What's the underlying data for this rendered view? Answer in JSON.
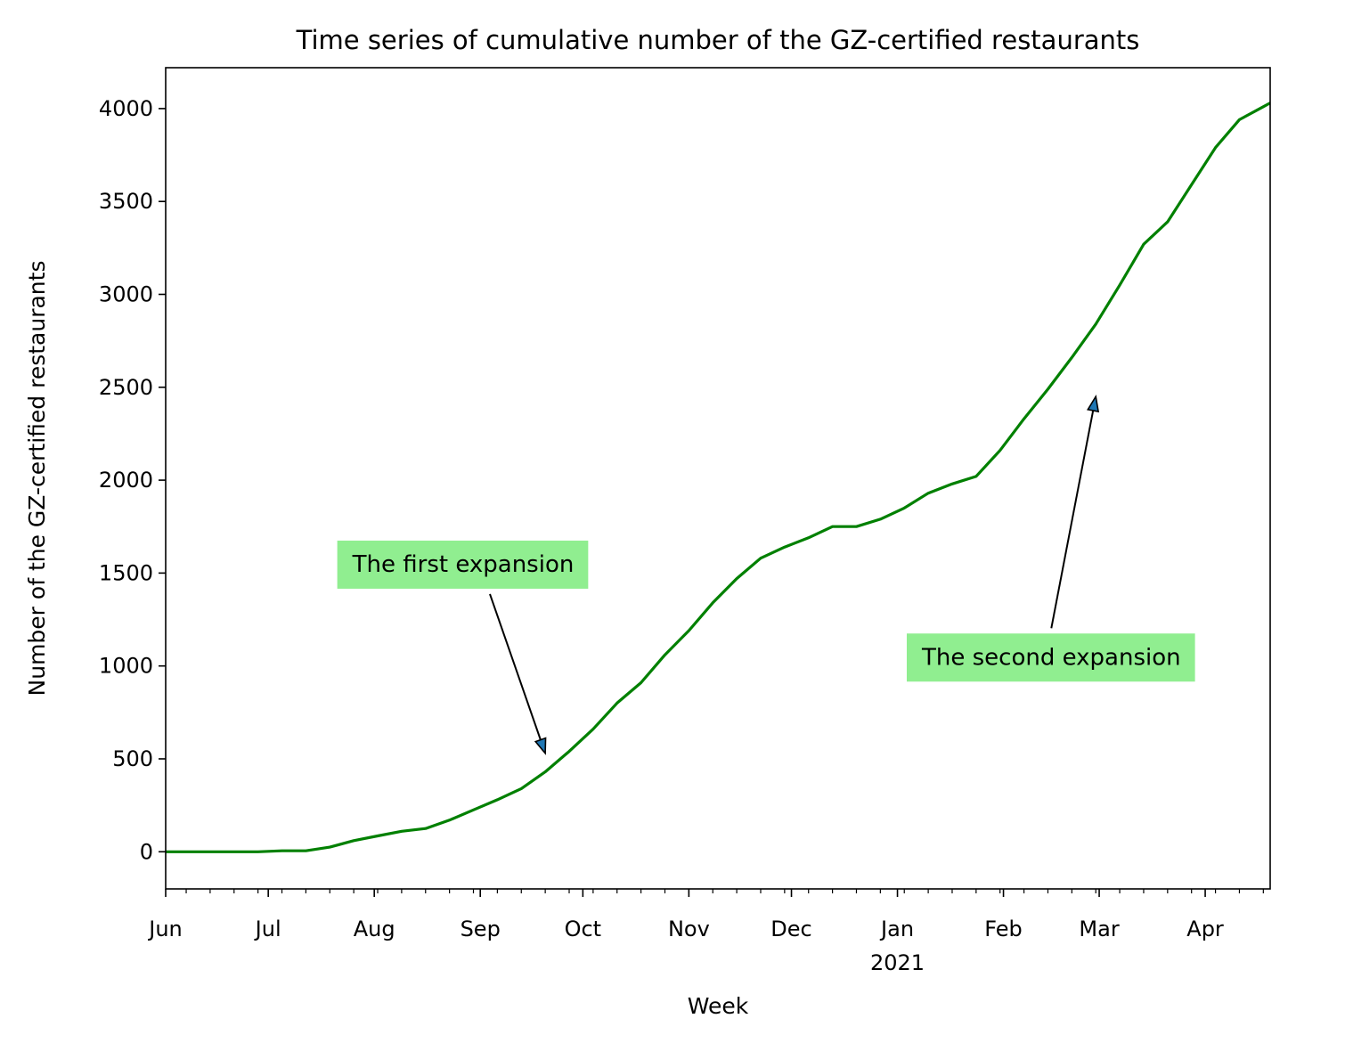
{
  "chart_data": {
    "type": "line",
    "title": "Time series of cumulative number of the GZ-certified restaurants",
    "xlabel": "Week",
    "ylabel": "Number of the GZ-certified restaurants",
    "ylim": [
      -200,
      4220
    ],
    "xlim": [
      "2020-06-01",
      "2021-04-20"
    ],
    "grid": false,
    "line_color": "#008000",
    "y_ticks": [
      0,
      500,
      1000,
      1500,
      2000,
      2500,
      3000,
      3500,
      4000
    ],
    "x_ticks": [
      {
        "date": "2020-06-01",
        "label": "Jun"
      },
      {
        "date": "2020-07-01",
        "label": "Jul"
      },
      {
        "date": "2020-08-01",
        "label": "Aug"
      },
      {
        "date": "2020-09-01",
        "label": "Sep"
      },
      {
        "date": "2020-10-01",
        "label": "Oct"
      },
      {
        "date": "2020-11-01",
        "label": "Nov"
      },
      {
        "date": "2020-12-01",
        "label": "Dec"
      },
      {
        "date": "2021-01-01",
        "label": "Jan",
        "sublabel": "2021"
      },
      {
        "date": "2021-02-01",
        "label": "Feb"
      },
      {
        "date": "2021-03-01",
        "label": "Mar"
      },
      {
        "date": "2021-04-01",
        "label": "Apr"
      }
    ],
    "series": [
      {
        "x": [
          "2020-06-01",
          "2020-06-07",
          "2020-06-14",
          "2020-06-21",
          "2020-06-28",
          "2020-07-05",
          "2020-07-12",
          "2020-07-19",
          "2020-07-26",
          "2020-08-02",
          "2020-08-09",
          "2020-08-16",
          "2020-08-23",
          "2020-08-30",
          "2020-09-06",
          "2020-09-13",
          "2020-09-20",
          "2020-09-27",
          "2020-10-04",
          "2020-10-11",
          "2020-10-18",
          "2020-10-25",
          "2020-11-01",
          "2020-11-08",
          "2020-11-15",
          "2020-11-22",
          "2020-11-29",
          "2020-12-06",
          "2020-12-13",
          "2020-12-20",
          "2020-12-27",
          "2021-01-03",
          "2021-01-10",
          "2021-01-17",
          "2021-01-24",
          "2021-01-31",
          "2021-02-07",
          "2021-02-14",
          "2021-02-21",
          "2021-02-28",
          "2021-03-07",
          "2021-03-14",
          "2021-03-21",
          "2021-03-28",
          "2021-04-04",
          "2021-04-11",
          "2021-04-18",
          "2021-04-20"
        ],
        "values": [
          0,
          0,
          0,
          0,
          0,
          5,
          5,
          25,
          60,
          85,
          110,
          125,
          170,
          225,
          280,
          340,
          430,
          540,
          660,
          800,
          910,
          1060,
          1190,
          1340,
          1470,
          1580,
          1640,
          1690,
          1750,
          1750,
          1790,
          1850,
          1930,
          1980,
          2020,
          2160,
          2330,
          2490,
          2660,
          2840,
          3050,
          3270,
          3390,
          3590,
          3790,
          3940,
          4010,
          4030
        ]
      }
    ],
    "annotations": [
      {
        "text": "The first expansion",
        "box_color": "#90ee90",
        "text_at": [
          "2020-08-27",
          1550
        ],
        "arrow_to": [
          "2020-09-20",
          530
        ]
      },
      {
        "text": "The second expansion",
        "box_color": "#90ee90",
        "text_at": [
          "2021-02-15",
          1050
        ],
        "arrow_to": [
          "2021-02-28",
          2450
        ]
      }
    ]
  }
}
